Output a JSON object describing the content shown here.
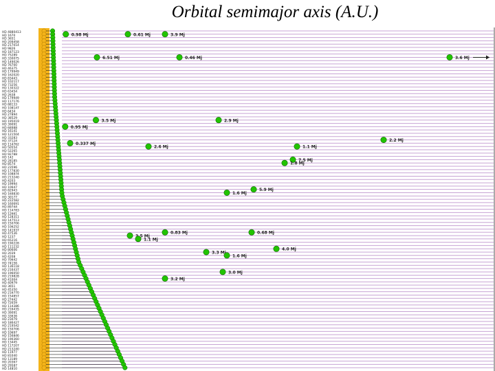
{
  "title": "Orbital semimajor axis (A.U.)",
  "chart_data": {
    "type": "scatter",
    "title": "Orbital semimajor axis (A.U.)",
    "grid": true,
    "colors": {
      "star": "#f4b41a",
      "planet": "#22c400",
      "grid": "#c7a3d4"
    },
    "planets": [
      {
        "row": 1,
        "x": 0.99,
        "label": "0.98 Mj"
      },
      {
        "row": 1,
        "x": 4.0,
        "label": "0.61 Mj"
      },
      {
        "row": 1,
        "x": 5.8,
        "label": "3.9 Mj"
      },
      {
        "row": 8,
        "x": 2.5,
        "label": "6.51 Mj"
      },
      {
        "row": 8,
        "x": 6.5,
        "label": "0.46 Mj"
      },
      {
        "row": 8,
        "x": 19.6,
        "label": "3.6 Mj"
      },
      {
        "row": 27,
        "x": 2.45,
        "label": "3.5 Mj"
      },
      {
        "row": 27,
        "x": 8.4,
        "label": "2.9 Mj"
      },
      {
        "row": 29,
        "x": 0.96,
        "label": "0.95 Mj"
      },
      {
        "row": 33,
        "x": 16.4,
        "label": "2.2 Mj"
      },
      {
        "row": 34,
        "x": 1.2,
        "label": "0.337 Mj"
      },
      {
        "row": 35,
        "x": 5.0,
        "label": "2.6 Mj"
      },
      {
        "row": 35,
        "x": 12.2,
        "label": "1.1 Mj"
      },
      {
        "row": 39,
        "x": 12.0,
        "label": "7.5 Mj"
      },
      {
        "row": 40,
        "x": 11.6,
        "label": "1.8 Mj"
      },
      {
        "row": 48,
        "x": 10.1,
        "label": "5.9 Mj"
      },
      {
        "row": 49,
        "x": 8.8,
        "label": "1.6 Mj"
      },
      {
        "row": 61,
        "x": 5.8,
        "label": "0.83 Mj"
      },
      {
        "row": 61,
        "x": 10.0,
        "label": "0.68 Mj"
      },
      {
        "row": 62,
        "x": 4.1,
        "label": "3.5 Mj"
      },
      {
        "row": 63,
        "x": 4.5,
        "label": "1.1 Mj"
      },
      {
        "row": 66,
        "x": 11.2,
        "label": "4.0 Mj"
      },
      {
        "row": 67,
        "x": 7.8,
        "label": "3.3 Mj"
      },
      {
        "row": 68,
        "x": 8.8,
        "label": "1.6 Mj"
      },
      {
        "row": 73,
        "x": 8.6,
        "label": "3.0 Mj"
      },
      {
        "row": 75,
        "x": 5.8,
        "label": "3.2 Mj"
      }
    ],
    "stars": [
      "HD 4880413",
      "HD 1670",
      "HD 3651",
      "HD 209458",
      "HD 217014",
      "HD 9826",
      "HD 187123",
      "HD 75289",
      "HD 330075",
      "HD 149026",
      "HD 76700",
      "HD 46375",
      "HD 179949",
      "HD 162020",
      "HD 83443",
      "HD 102117",
      "HD 73256",
      "HD 130322",
      "HD 63454",
      "HD 2638",
      "HD 179949",
      "HD 117176",
      "HD 88133",
      "HD 108147",
      "HD 6434",
      "HD 27894",
      "HD 38529",
      "HD 195019",
      "HD 39091",
      "HD 68988",
      "HD 16141",
      "HD 121504",
      "HD 33283",
      "HD 37124",
      "HD 114762",
      "HD 50554",
      "HD 52265",
      "HD 92788",
      "HD 142",
      "HD 28185",
      "HD 8574",
      "HD 23596",
      "HD 177830",
      "HD 108874",
      "HD 213240",
      "HD 4203",
      "HD 19994",
      "HD 10647",
      "HD 82943",
      "HD 169830",
      "HD 30177",
      "HD 222582",
      "HD 160691",
      "HD 89744",
      "HD 114783",
      "HD 12661",
      "HD 128311",
      "HD 147513",
      "HD 150706",
      "HD 106252",
      "HD 141937",
      "HD 47536",
      "HD 1237",
      "HD 65216",
      "HD 190228",
      "HD 111232",
      "HD 80606",
      "HD 2039",
      "HD 4208",
      "HD 70642",
      "HD 74156",
      "HD 136118",
      "HD 216437",
      "HD 196050",
      "HD 219828",
      "HD 41004",
      "HD 40979",
      "HD 3651",
      "HD 45350",
      "HD 216770",
      "HD 154857",
      "HD 27442",
      "HD 72659",
      "HD 114386",
      "HD 216435",
      "HD 39091",
      "HD 33636",
      "HD 23079",
      "HD 186427",
      "HD 219542",
      "HD 150706",
      "HD 10697",
      "HD 156846",
      "HD 190360",
      "HD 13445",
      "HD 117207",
      "HD 213240",
      "HD 11977",
      "HD 81040",
      "HD 13189",
      "HD 20367",
      "HD 29587",
      "HD 14810"
    ]
  }
}
